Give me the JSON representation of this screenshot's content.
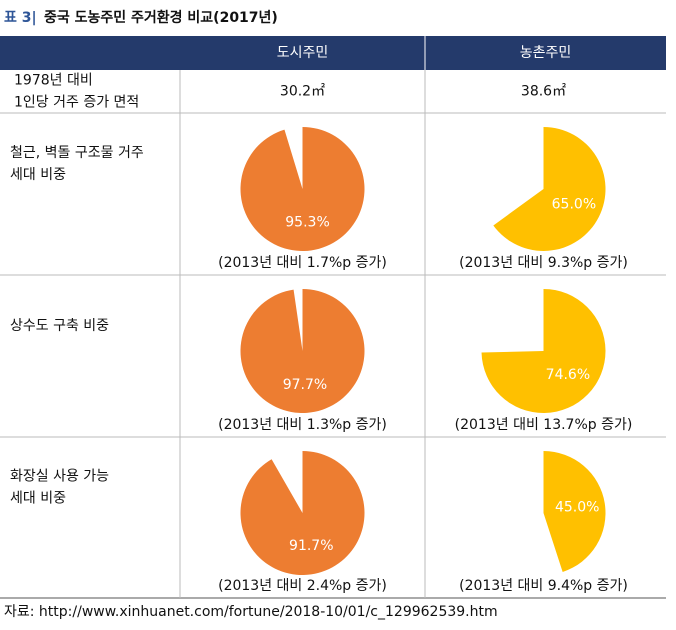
{
  "title": {
    "tag": "표 3|",
    "text": "중국 도농주민 주거환경 비교(2017년)"
  },
  "table": {
    "columns": [
      "도시주민",
      "농촌주민"
    ],
    "colors": [
      "#ed7d31",
      "#ffc000"
    ],
    "rows": [
      {
        "label": [
          "1978년 대비",
          "1인당 거주 증가 면적"
        ],
        "cells": [
          "30.2㎡",
          "38.6㎡"
        ]
      },
      {
        "label": [
          "철근, 벽돌 구조물 거주",
          "세대 비중"
        ],
        "cells": [
          {
            "type": "pie",
            "value": 95.3,
            "value_label": "95.3%",
            "note": "(2013년 대비 1.7%p 증가)"
          },
          {
            "type": "pie",
            "value": 65.0,
            "value_label": "65.0%",
            "note": "(2013년 대비 9.3%p 증가)"
          }
        ]
      },
      {
        "label": [
          "상수도 구축 비중"
        ],
        "cells": [
          {
            "type": "pie",
            "value": 97.7,
            "value_label": "97.7%",
            "note": "(2013년 대비 1.3%p 증가)"
          },
          {
            "type": "pie",
            "value": 74.6,
            "value_label": "74.6%",
            "note": "(2013년 대비 13.7%p 증가)"
          }
        ]
      },
      {
        "label": [
          "화장실 사용 가능",
          "세대 비중"
        ],
        "cells": [
          {
            "type": "pie",
            "value": 91.7,
            "value_label": "91.7%",
            "note": "(2013년 대비 2.4%p 증가)"
          },
          {
            "type": "pie",
            "value": 45.0,
            "value_label": "45.0%",
            "note": "(2013년 대비 9.4%p 증가)"
          }
        ]
      }
    ]
  },
  "source": "자료: http://www.xinhuanet.com/fortune/2018-10/01/c_129962539.htm"
}
